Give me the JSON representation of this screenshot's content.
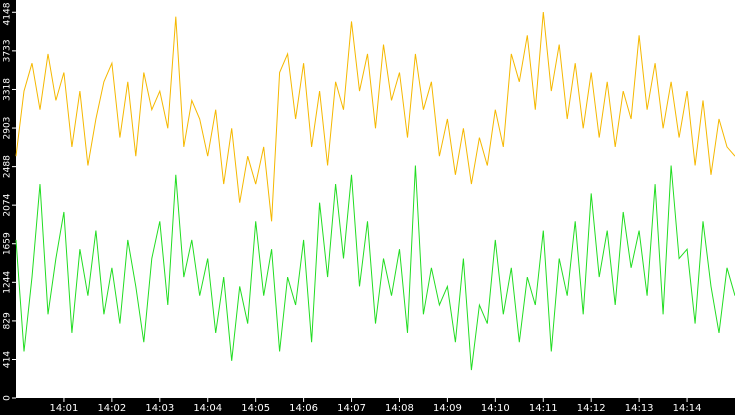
{
  "chart_data": {
    "type": "line",
    "categories": [
      null,
      null,
      null,
      null,
      null,
      null,
      "14:01",
      null,
      null,
      null,
      null,
      null,
      "14:02",
      null,
      null,
      null,
      null,
      null,
      "14:03",
      null,
      null,
      null,
      null,
      null,
      "14:04",
      null,
      null,
      null,
      null,
      null,
      "14:05",
      null,
      null,
      null,
      null,
      null,
      "14:06",
      null,
      null,
      null,
      null,
      null,
      "14:07",
      null,
      null,
      null,
      null,
      null,
      "14:08",
      null,
      null,
      null,
      null,
      null,
      "14:09",
      null,
      null,
      null,
      null,
      null,
      "14:10",
      null,
      null,
      null,
      null,
      null,
      "14:11",
      null,
      null,
      null,
      null,
      null,
      "14:12",
      null,
      null,
      null,
      null,
      null,
      "14:13",
      null,
      null,
      null,
      null,
      null,
      "14:14",
      null,
      null,
      null,
      null,
      null,
      null
    ],
    "series": [
      {
        "color": "#f5b800",
        "values": [
          2600,
          3300,
          3600,
          3100,
          3700,
          3200,
          3500,
          2700,
          3300,
          2500,
          3000,
          3400,
          3600,
          2800,
          3400,
          2600,
          3500,
          3100,
          3300,
          2900,
          4100,
          2700,
          3200,
          3000,
          2600,
          3100,
          2300,
          2900,
          2100,
          2600,
          2300,
          2700,
          1900,
          3500,
          3700,
          3000,
          3600,
          2700,
          3300,
          2500,
          3400,
          3100,
          4050,
          3300,
          3700,
          2900,
          3800,
          3200,
          3500,
          2800,
          3700,
          3100,
          3400,
          2600,
          3000,
          2400,
          2900,
          2300,
          2800,
          2500,
          3100,
          2700,
          3700,
          3400,
          3900,
          3100,
          4150,
          3300,
          3800,
          3000,
          3600,
          2900,
          3500,
          2800,
          3400,
          2700,
          3300,
          3000,
          3900,
          3100,
          3600,
          2900,
          3400,
          2800,
          3300,
          2500,
          3200,
          2400,
          3000,
          2700,
          2600
        ]
      },
      {
        "color": "#22dd22",
        "values": [
          1700,
          500,
          1300,
          2300,
          900,
          1500,
          2000,
          700,
          1600,
          1100,
          1800,
          900,
          1400,
          800,
          1700,
          1200,
          600,
          1500,
          1900,
          1000,
          2400,
          1300,
          1700,
          1100,
          1500,
          700,
          1300,
          400,
          1200,
          800,
          1900,
          1100,
          1600,
          500,
          1300,
          1000,
          1700,
          600,
          2100,
          1300,
          2300,
          1500,
          2400,
          1200,
          1900,
          800,
          1500,
          1100,
          1600,
          700,
          2500,
          900,
          1400,
          1000,
          1200,
          600,
          1500,
          300,
          1000,
          800,
          1700,
          900,
          1400,
          600,
          1300,
          1000,
          1800,
          500,
          1500,
          1100,
          1900,
          900,
          2200,
          1300,
          1800,
          1000,
          2000,
          1400,
          1800,
          1100,
          2300,
          900,
          2500,
          1500,
          1600,
          800,
          1900,
          1200,
          700,
          1400,
          1100
        ]
      }
    ],
    "ylim": [
      0,
      4280
    ],
    "yticks": [
      0,
      414,
      829,
      1244,
      1659,
      2074,
      2488,
      2903,
      3318,
      3733,
      4148
    ]
  }
}
